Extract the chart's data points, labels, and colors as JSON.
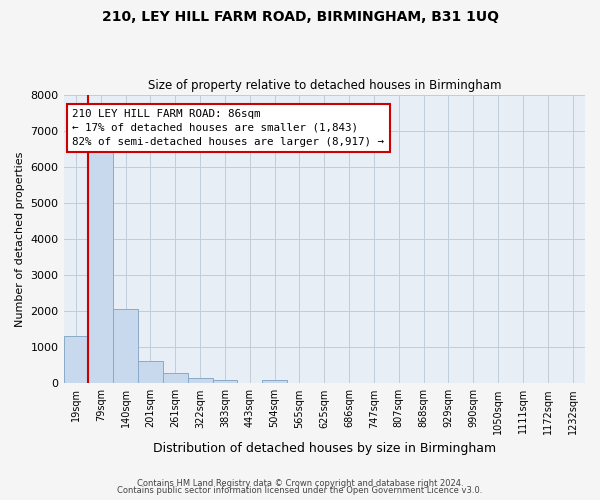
{
  "title": "210, LEY HILL FARM ROAD, BIRMINGHAM, B31 1UQ",
  "subtitle": "Size of property relative to detached houses in Birmingham",
  "xlabel": "Distribution of detached houses by size in Birmingham",
  "ylabel": "Number of detached properties",
  "bin_labels": [
    "19sqm",
    "79sqm",
    "140sqm",
    "201sqm",
    "261sqm",
    "322sqm",
    "383sqm",
    "443sqm",
    "504sqm",
    "565sqm",
    "625sqm",
    "686sqm",
    "747sqm",
    "807sqm",
    "868sqm",
    "929sqm",
    "990sqm",
    "1050sqm",
    "1111sqm",
    "1172sqm",
    "1232sqm"
  ],
  "bar_heights": [
    1300,
    6500,
    2050,
    620,
    290,
    150,
    80,
    0,
    100,
    0,
    0,
    0,
    0,
    0,
    0,
    0,
    0,
    0,
    0,
    0,
    0
  ],
  "bar_color": "#c8d8ed",
  "bar_edge_color": "#8aaac8",
  "red_line_color": "#cc0000",
  "annotation_box_color": "#cc0000",
  "annotation_text_line1": "210 LEY HILL FARM ROAD: 86sqm",
  "annotation_text_line2": "← 17% of detached houses are smaller (1,843)",
  "annotation_text_line3": "82% of semi-detached houses are larger (8,917) →",
  "ylim": [
    0,
    8000
  ],
  "yticks": [
    0,
    1000,
    2000,
    3000,
    4000,
    5000,
    6000,
    7000,
    8000
  ],
  "background_color": "#f5f5f5",
  "plot_background": "#e8eef5",
  "grid_color": "#c0ccd8",
  "footer_line1": "Contains HM Land Registry data © Crown copyright and database right 2024.",
  "footer_line2": "Contains public sector information licensed under the Open Government Licence v3.0."
}
